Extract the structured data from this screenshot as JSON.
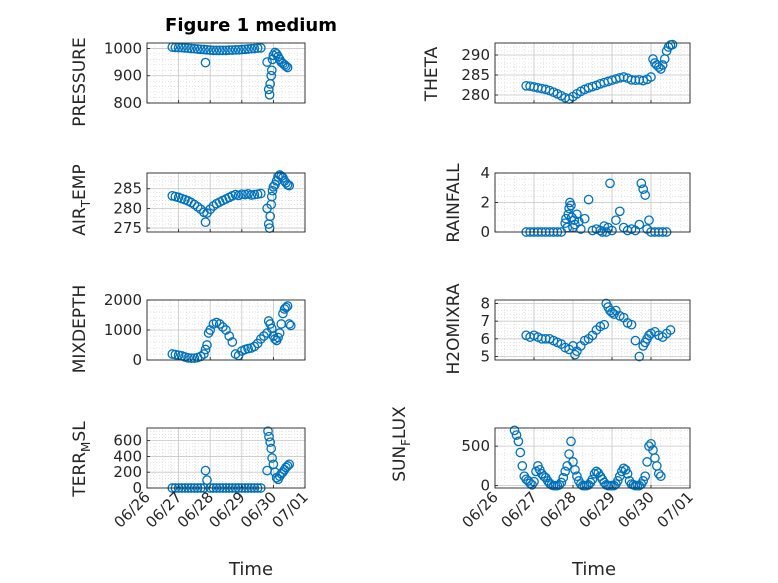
{
  "figure": {
    "title": "Figure 1 medium",
    "x_label": "Time",
    "x_tick_labels": [
      "06/26",
      "06/27",
      "06/28",
      "06/29",
      "06/30",
      "07/01"
    ],
    "marker_color": "#0072BD"
  },
  "chart_data": [
    {
      "type": "scatter",
      "marker": "circle-open",
      "ylabel": "PRESSURE",
      "ylim": [
        800,
        1020
      ],
      "yticks": [
        800,
        900,
        1000
      ],
      "grid": true,
      "minor_grid": true,
      "x": [
        26.8,
        26.9,
        27.0,
        27.1,
        27.2,
        27.3,
        27.4,
        27.5,
        27.6,
        27.7,
        27.8,
        27.85,
        27.9,
        28.0,
        28.1,
        28.2,
        28.3,
        28.4,
        28.5,
        28.6,
        28.7,
        28.8,
        28.9,
        29.0,
        29.1,
        29.2,
        29.3,
        29.4,
        29.5,
        29.6,
        29.8,
        29.85,
        29.88,
        29.9,
        29.93,
        29.95,
        29.97,
        30.0,
        30.05,
        30.1,
        30.15,
        30.2,
        30.25,
        30.3,
        30.35,
        30.4,
        30.45
      ],
      "y": [
        1005,
        1004,
        1003,
        1003,
        1002,
        1001,
        1000,
        999,
        998,
        997,
        996,
        948,
        995,
        994,
        993,
        993,
        993,
        993,
        993,
        994,
        994,
        995,
        995,
        996,
        997,
        998,
        999,
        1000,
        1001,
        1002,
        950,
        850,
        830,
        870,
        900,
        920,
        960,
        975,
        985,
        980,
        970,
        960,
        950,
        945,
        940,
        935,
        930
      ]
    },
    {
      "type": "scatter",
      "marker": "circle-open",
      "ylabel": "THETA",
      "ylim": [
        278,
        293
      ],
      "yticks": [
        280,
        285,
        290
      ],
      "grid": true,
      "minor_grid": true,
      "x": [
        26.8,
        26.9,
        27.0,
        27.1,
        27.2,
        27.3,
        27.4,
        27.5,
        27.6,
        27.7,
        27.8,
        27.9,
        28.0,
        28.1,
        28.2,
        28.3,
        28.4,
        28.5,
        28.6,
        28.7,
        28.8,
        28.9,
        29.0,
        29.1,
        29.2,
        29.3,
        29.4,
        29.5,
        29.6,
        29.7,
        29.8,
        29.9,
        30.0,
        30.05,
        30.1,
        30.15,
        30.2,
        30.25,
        30.3,
        30.35,
        30.4,
        30.45,
        30.5,
        30.55
      ],
      "y": [
        282.3,
        282.2,
        282.0,
        281.8,
        281.6,
        281.4,
        281.1,
        280.7,
        280.3,
        279.8,
        279.3,
        279.0,
        279.6,
        280.3,
        280.9,
        281.4,
        281.8,
        282.1,
        282.4,
        282.8,
        283.1,
        283.4,
        283.7,
        284.0,
        284.3,
        284.5,
        284.2,
        283.8,
        283.7,
        283.8,
        283.6,
        283.9,
        284.5,
        289.0,
        288.0,
        287.5,
        287.0,
        286.5,
        287.5,
        289.0,
        291.0,
        292.0,
        292.5,
        292.6
      ]
    },
    {
      "type": "scatter",
      "marker": "circle-open",
      "ylabel": "AIR_TEMP",
      "ylabel_parts": [
        "AIR",
        "T",
        "EMP"
      ],
      "ylim": [
        274,
        289
      ],
      "yticks": [
        275,
        280,
        285
      ],
      "grid": true,
      "minor_grid": true,
      "x": [
        26.8,
        26.9,
        27.0,
        27.1,
        27.2,
        27.3,
        27.4,
        27.5,
        27.6,
        27.7,
        27.8,
        27.85,
        27.9,
        28.0,
        28.1,
        28.2,
        28.3,
        28.4,
        28.5,
        28.6,
        28.7,
        28.8,
        28.9,
        29.0,
        29.1,
        29.2,
        29.3,
        29.4,
        29.5,
        29.6,
        29.8,
        29.85,
        29.88,
        29.9,
        29.93,
        29.95,
        29.97,
        30.0,
        30.05,
        30.1,
        30.15,
        30.2,
        30.25,
        30.3,
        30.35,
        30.4,
        30.45,
        30.5
      ],
      "y": [
        283.2,
        283.0,
        282.8,
        282.5,
        282.2,
        281.9,
        281.5,
        281.0,
        280.4,
        279.8,
        279.0,
        276.5,
        278.8,
        279.8,
        280.6,
        281.2,
        281.6,
        282.0,
        282.4,
        282.8,
        283.2,
        283.5,
        283.3,
        283.6,
        283.5,
        283.7,
        283.4,
        283.5,
        283.6,
        283.8,
        280.0,
        276.0,
        275.0,
        278.0,
        281.0,
        283.0,
        284.5,
        285.5,
        286.0,
        287.0,
        288.0,
        288.5,
        288.2,
        287.8,
        287.0,
        286.5,
        286.0,
        285.8
      ]
    },
    {
      "type": "scatter",
      "marker": "circle-open",
      "ylabel": "RAINFALL",
      "ylim": [
        0,
        4
      ],
      "yticks": [
        0,
        2,
        4
      ],
      "grid": true,
      "minor_grid": true,
      "x": [
        26.8,
        26.9,
        27.0,
        27.1,
        27.2,
        27.3,
        27.4,
        27.5,
        27.6,
        27.7,
        27.8,
        27.82,
        27.85,
        27.88,
        27.9,
        27.92,
        27.95,
        27.97,
        28.0,
        28.03,
        28.05,
        28.1,
        28.15,
        28.2,
        28.3,
        28.4,
        28.5,
        28.6,
        28.7,
        28.75,
        28.8,
        28.85,
        28.9,
        28.95,
        29.0,
        29.1,
        29.2,
        29.3,
        29.4,
        29.5,
        29.6,
        29.7,
        29.75,
        29.8,
        29.85,
        29.9,
        29.95,
        30.0,
        30.1,
        30.2,
        30.3,
        30.4
      ],
      "y": [
        0,
        0,
        0,
        0,
        0,
        0,
        0,
        0,
        0,
        0,
        0.6,
        0.9,
        0.3,
        1.2,
        1.6,
        2.0,
        1.8,
        1.0,
        0.3,
        0.8,
        0.5,
        1.2,
        0.7,
        0.2,
        0.9,
        2.2,
        0.1,
        0.2,
        0.1,
        0.0,
        0.4,
        0,
        0.3,
        3.3,
        0.1,
        0.8,
        1.4,
        0.3,
        0.1,
        0.2,
        0.1,
        0.5,
        3.3,
        2.9,
        2.5,
        0.2,
        0.8,
        0,
        0,
        0,
        0,
        0
      ]
    },
    {
      "type": "scatter",
      "marker": "circle-open",
      "ylabel": "MIXDEPTH",
      "ylim": [
        0,
        2000
      ],
      "yticks": [
        0,
        1000,
        2000
      ],
      "grid": true,
      "minor_grid": true,
      "x": [
        26.8,
        26.9,
        27.0,
        27.1,
        27.2,
        27.3,
        27.4,
        27.5,
        27.6,
        27.7,
        27.8,
        27.85,
        27.9,
        27.95,
        28.0,
        28.1,
        28.2,
        28.3,
        28.4,
        28.5,
        28.6,
        28.7,
        28.8,
        28.9,
        29.0,
        29.1,
        29.2,
        29.3,
        29.4,
        29.5,
        29.6,
        29.7,
        29.8,
        29.85,
        29.9,
        29.95,
        30.0,
        30.05,
        30.1,
        30.15,
        30.2,
        30.25,
        30.3,
        30.35,
        30.4,
        30.45,
        30.5,
        30.55
      ],
      "y": [
        200,
        180,
        160,
        140,
        100,
        70,
        60,
        60,
        80,
        120,
        200,
        350,
        500,
        900,
        1000,
        1200,
        1250,
        1200,
        1100,
        1000,
        800,
        600,
        200,
        150,
        300,
        350,
        380,
        400,
        450,
        550,
        700,
        800,
        900,
        1300,
        1200,
        1050,
        800,
        700,
        650,
        750,
        900,
        1200,
        1550,
        1700,
        1750,
        1800,
        1200,
        1150
      ]
    },
    {
      "type": "scatter",
      "marker": "circle-open",
      "ylabel": "H2OMIXRA",
      "ylim": [
        4.8,
        8.2
      ],
      "yticks": [
        5,
        6,
        7,
        8
      ],
      "grid": true,
      "minor_grid": true,
      "x": [
        26.8,
        26.9,
        27.0,
        27.1,
        27.2,
        27.3,
        27.4,
        27.5,
        27.6,
        27.7,
        27.8,
        27.9,
        28.0,
        28.05,
        28.1,
        28.2,
        28.3,
        28.4,
        28.5,
        28.6,
        28.7,
        28.8,
        28.85,
        28.9,
        28.95,
        29.0,
        29.05,
        29.1,
        29.2,
        29.3,
        29.4,
        29.5,
        29.6,
        29.7,
        29.8,
        29.85,
        29.9,
        29.95,
        30.0,
        30.1,
        30.2,
        30.3,
        30.4,
        30.5
      ],
      "y": [
        6.2,
        6.1,
        6.2,
        6.1,
        6.0,
        6.0,
        6.0,
        5.9,
        5.8,
        5.7,
        5.5,
        5.4,
        5.6,
        5.1,
        5.3,
        5.6,
        5.9,
        6.0,
        6.2,
        6.5,
        6.7,
        6.8,
        8.0,
        7.8,
        7.6,
        7.5,
        7.4,
        7.6,
        7.3,
        7.2,
        6.9,
        6.8,
        5.9,
        5.0,
        5.6,
        5.8,
        6.0,
        6.2,
        6.3,
        6.4,
        6.2,
        6.1,
        6.3,
        6.5
      ]
    },
    {
      "type": "scatter",
      "marker": "circle-open",
      "ylabel": "TERR_MSL",
      "ylabel_parts": [
        "TERR",
        "M",
        "SL"
      ],
      "ylim": [
        0,
        760
      ],
      "yticks": [
        0,
        200,
        400,
        600
      ],
      "grid": true,
      "minor_grid": true,
      "x": [
        26.8,
        26.9,
        27.0,
        27.1,
        27.2,
        27.3,
        27.4,
        27.5,
        27.6,
        27.7,
        27.8,
        27.85,
        27.9,
        28.0,
        28.1,
        28.2,
        28.3,
        28.4,
        28.5,
        28.6,
        28.7,
        28.8,
        28.9,
        29.0,
        29.1,
        29.2,
        29.3,
        29.4,
        29.5,
        29.6,
        29.8,
        29.83,
        29.86,
        29.9,
        29.93,
        29.96,
        30.0,
        30.05,
        30.1,
        30.15,
        30.2,
        30.25,
        30.3,
        30.35,
        30.4,
        30.45,
        30.5
      ],
      "y": [
        0,
        0,
        0,
        0,
        0,
        0,
        0,
        0,
        0,
        0,
        0,
        220,
        100,
        0,
        0,
        0,
        0,
        0,
        0,
        0,
        0,
        0,
        0,
        0,
        0,
        0,
        0,
        0,
        0,
        0,
        220,
        720,
        650,
        580,
        500,
        380,
        300,
        200,
        130,
        110,
        150,
        180,
        200,
        230,
        260,
        280,
        300
      ]
    },
    {
      "type": "scatter",
      "marker": "circle-open",
      "ylabel": "SUN_FLUX",
      "ylabel_parts": [
        "SUN",
        "F",
        "LUX"
      ],
      "ylim": [
        -30,
        730
      ],
      "yticks": [
        0,
        500
      ],
      "grid": true,
      "minor_grid": true,
      "x": [
        26.5,
        26.55,
        26.6,
        26.65,
        26.7,
        26.75,
        26.8,
        26.85,
        26.9,
        26.95,
        27.0,
        27.05,
        27.1,
        27.15,
        27.2,
        27.25,
        27.3,
        27.35,
        27.4,
        27.45,
        27.5,
        27.55,
        27.6,
        27.65,
        27.7,
        27.75,
        27.8,
        27.85,
        27.9,
        27.95,
        28.0,
        28.05,
        28.1,
        28.15,
        28.2,
        28.25,
        28.3,
        28.35,
        28.4,
        28.45,
        28.5,
        28.55,
        28.6,
        28.65,
        28.7,
        28.75,
        28.8,
        28.85,
        28.9,
        28.95,
        29.0,
        29.05,
        29.1,
        29.15,
        29.2,
        29.25,
        29.3,
        29.35,
        29.4,
        29.45,
        29.5,
        29.55,
        29.6,
        29.65,
        29.7,
        29.75,
        29.8,
        29.85,
        29.9,
        29.95,
        30.0,
        30.05,
        30.1,
        30.15,
        30.2,
        30.25
      ],
      "y": [
        700,
        640,
        560,
        420,
        250,
        120,
        80,
        60,
        30,
        10,
        50,
        180,
        250,
        200,
        150,
        120,
        100,
        60,
        30,
        10,
        0,
        0,
        0,
        10,
        40,
        100,
        180,
        250,
        400,
        560,
        300,
        200,
        120,
        60,
        20,
        0,
        0,
        0,
        10,
        40,
        80,
        150,
        180,
        160,
        120,
        80,
        40,
        10,
        0,
        0,
        0,
        0,
        20,
        60,
        120,
        180,
        220,
        200,
        150,
        60,
        20,
        10,
        0,
        0,
        0,
        20,
        60,
        120,
        300,
        500,
        530,
        450,
        350,
        250,
        150,
        120
      ]
    }
  ]
}
